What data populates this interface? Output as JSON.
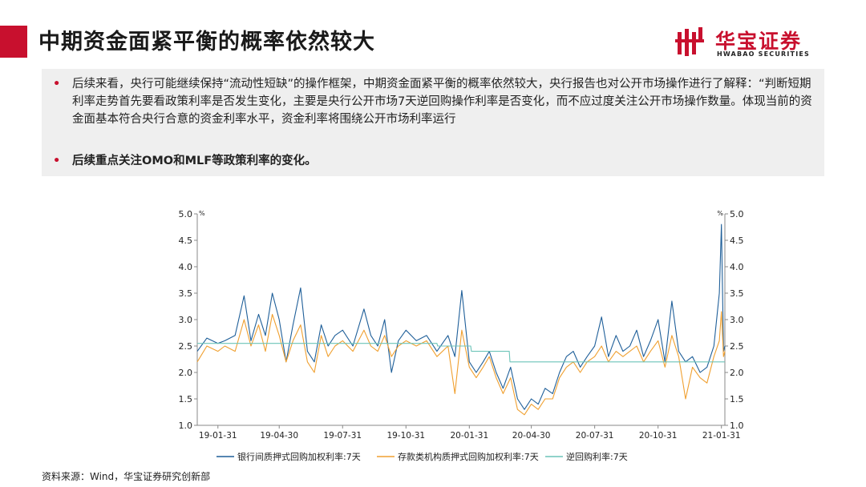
{
  "page": {
    "title": "中期资金面紧平衡的概率依然较大",
    "brand_cn": "华宝证券",
    "brand_en": "HWABAO SECURITIES",
    "accent_color": "#c8102e"
  },
  "bullets": [
    {
      "marker": "•",
      "text": "后续来看，央行可能继续保持“流动性短缺”的操作框架，中期资金面紧平衡的概率依然较大，央行报告也对公开市场操作进行了解释：“判断短期利率走势首先要看政策利率是否发生变化，主要是央行公开市场7天逆回购操作利率是否变化，而不应过度关注公开市场操作数量。体现当前的资金面基本符合央行合意的资金利率水平，资金利率将围绕公开市场利率运行"
    },
    {
      "marker": "•",
      "text": "后续重点关注OMO和MLF等政策利率的变化。"
    }
  ],
  "source": "资料来源：Wind，华宝证券研究创新部",
  "chart_data": {
    "type": "line",
    "y_unit_left": "%",
    "y_unit_right": "%",
    "ylim": [
      1.0,
      5.0
    ],
    "yticks": [
      "1.0",
      "1.5",
      "2.0",
      "2.5",
      "3.0",
      "3.5",
      "4.0",
      "4.5",
      "5.0"
    ],
    "xticks": [
      "19-01-31",
      "19-04-30",
      "19-07-31",
      "19-10-31",
      "20-01-31",
      "20-04-30",
      "20-07-31",
      "20-10-31",
      "21-01-31"
    ],
    "x_range": [
      "2019-01-01",
      "2021-02-05"
    ],
    "grid": false,
    "legend_position": "bottom",
    "series": [
      {
        "name": "银行间质押式回购加权利率:7天",
        "color": "#1f5f99",
        "points": [
          [
            "2019-01-01",
            2.4
          ],
          [
            "2019-01-15",
            2.65
          ],
          [
            "2019-01-31",
            2.55
          ],
          [
            "2019-02-10",
            2.6
          ],
          [
            "2019-02-25",
            2.7
          ],
          [
            "2019-03-10",
            3.45
          ],
          [
            "2019-03-20",
            2.6
          ],
          [
            "2019-03-31",
            3.1
          ],
          [
            "2019-04-10",
            2.7
          ],
          [
            "2019-04-20",
            3.5
          ],
          [
            "2019-04-30",
            3.0
          ],
          [
            "2019-05-10",
            2.2
          ],
          [
            "2019-05-20",
            2.9
          ],
          [
            "2019-05-31",
            3.6
          ],
          [
            "2019-06-10",
            2.4
          ],
          [
            "2019-06-20",
            2.2
          ],
          [
            "2019-06-30",
            2.9
          ],
          [
            "2019-07-10",
            2.5
          ],
          [
            "2019-07-20",
            2.7
          ],
          [
            "2019-07-31",
            2.8
          ],
          [
            "2019-08-15",
            2.5
          ],
          [
            "2019-08-31",
            3.2
          ],
          [
            "2019-09-10",
            2.7
          ],
          [
            "2019-09-20",
            2.5
          ],
          [
            "2019-09-30",
            3.0
          ],
          [
            "2019-10-10",
            2.0
          ],
          [
            "2019-10-20",
            2.6
          ],
          [
            "2019-10-31",
            2.8
          ],
          [
            "2019-11-15",
            2.6
          ],
          [
            "2019-11-30",
            2.7
          ],
          [
            "2019-12-15",
            2.4
          ],
          [
            "2019-12-31",
            2.7
          ],
          [
            "2020-01-10",
            2.3
          ],
          [
            "2020-01-20",
            3.55
          ],
          [
            "2020-01-31",
            2.2
          ],
          [
            "2020-02-10",
            2.0
          ],
          [
            "2020-02-20",
            2.2
          ],
          [
            "2020-02-29",
            2.4
          ],
          [
            "2020-03-10",
            2.0
          ],
          [
            "2020-03-20",
            1.7
          ],
          [
            "2020-03-31",
            2.1
          ],
          [
            "2020-04-10",
            1.5
          ],
          [
            "2020-04-20",
            1.3
          ],
          [
            "2020-04-30",
            1.5
          ],
          [
            "2020-05-10",
            1.4
          ],
          [
            "2020-05-20",
            1.7
          ],
          [
            "2020-05-31",
            1.6
          ],
          [
            "2020-06-10",
            2.0
          ],
          [
            "2020-06-20",
            2.3
          ],
          [
            "2020-06-30",
            2.4
          ],
          [
            "2020-07-10",
            2.1
          ],
          [
            "2020-07-20",
            2.3
          ],
          [
            "2020-07-31",
            2.5
          ],
          [
            "2020-08-10",
            3.05
          ],
          [
            "2020-08-20",
            2.3
          ],
          [
            "2020-08-31",
            2.7
          ],
          [
            "2020-09-10",
            2.4
          ],
          [
            "2020-09-20",
            2.5
          ],
          [
            "2020-09-30",
            2.8
          ],
          [
            "2020-10-10",
            2.3
          ],
          [
            "2020-10-20",
            2.6
          ],
          [
            "2020-10-31",
            3.0
          ],
          [
            "2020-11-10",
            2.2
          ],
          [
            "2020-11-20",
            3.35
          ],
          [
            "2020-11-30",
            2.4
          ],
          [
            "2020-12-10",
            2.2
          ],
          [
            "2020-12-20",
            2.3
          ],
          [
            "2020-12-31",
            2.0
          ],
          [
            "2021-01-10",
            2.1
          ],
          [
            "2021-01-20",
            2.5
          ],
          [
            "2021-01-28",
            3.5
          ],
          [
            "2021-01-31",
            4.8
          ],
          [
            "2021-02-03",
            2.4
          ],
          [
            "2021-02-05",
            2.5
          ]
        ]
      },
      {
        "name": "存款类机构质押式回购加权利率:7天",
        "color": "#f0a030",
        "points": [
          [
            "2019-01-01",
            2.2
          ],
          [
            "2019-01-15",
            2.5
          ],
          [
            "2019-01-31",
            2.4
          ],
          [
            "2019-02-10",
            2.5
          ],
          [
            "2019-02-25",
            2.4
          ],
          [
            "2019-03-10",
            3.0
          ],
          [
            "2019-03-20",
            2.5
          ],
          [
            "2019-03-31",
            2.9
          ],
          [
            "2019-04-10",
            2.4
          ],
          [
            "2019-04-20",
            3.1
          ],
          [
            "2019-04-30",
            2.7
          ],
          [
            "2019-05-10",
            2.2
          ],
          [
            "2019-05-20",
            2.6
          ],
          [
            "2019-05-31",
            2.9
          ],
          [
            "2019-06-10",
            2.2
          ],
          [
            "2019-06-20",
            2.0
          ],
          [
            "2019-06-30",
            2.7
          ],
          [
            "2019-07-10",
            2.3
          ],
          [
            "2019-07-20",
            2.5
          ],
          [
            "2019-07-31",
            2.6
          ],
          [
            "2019-08-15",
            2.4
          ],
          [
            "2019-08-31",
            2.8
          ],
          [
            "2019-09-10",
            2.5
          ],
          [
            "2019-09-20",
            2.4
          ],
          [
            "2019-09-30",
            2.7
          ],
          [
            "2019-10-10",
            2.3
          ],
          [
            "2019-10-20",
            2.5
          ],
          [
            "2019-10-31",
            2.6
          ],
          [
            "2019-11-15",
            2.5
          ],
          [
            "2019-11-30",
            2.6
          ],
          [
            "2019-12-15",
            2.3
          ],
          [
            "2019-12-31",
            2.5
          ],
          [
            "2020-01-10",
            1.6
          ],
          [
            "2020-01-20",
            2.8
          ],
          [
            "2020-01-31",
            2.1
          ],
          [
            "2020-02-10",
            1.9
          ],
          [
            "2020-02-20",
            2.1
          ],
          [
            "2020-02-29",
            2.3
          ],
          [
            "2020-03-10",
            1.9
          ],
          [
            "2020-03-20",
            1.6
          ],
          [
            "2020-03-31",
            1.9
          ],
          [
            "2020-04-10",
            1.3
          ],
          [
            "2020-04-20",
            1.2
          ],
          [
            "2020-04-30",
            1.4
          ],
          [
            "2020-05-10",
            1.3
          ],
          [
            "2020-05-20",
            1.5
          ],
          [
            "2020-05-31",
            1.5
          ],
          [
            "2020-06-10",
            1.9
          ],
          [
            "2020-06-20",
            2.1
          ],
          [
            "2020-06-30",
            2.2
          ],
          [
            "2020-07-10",
            2.0
          ],
          [
            "2020-07-20",
            2.2
          ],
          [
            "2020-07-31",
            2.3
          ],
          [
            "2020-08-10",
            2.5
          ],
          [
            "2020-08-20",
            2.2
          ],
          [
            "2020-08-31",
            2.4
          ],
          [
            "2020-09-10",
            2.3
          ],
          [
            "2020-09-20",
            2.4
          ],
          [
            "2020-09-30",
            2.5
          ],
          [
            "2020-10-10",
            2.2
          ],
          [
            "2020-10-20",
            2.4
          ],
          [
            "2020-10-31",
            2.6
          ],
          [
            "2020-11-10",
            2.1
          ],
          [
            "2020-11-20",
            2.7
          ],
          [
            "2020-11-30",
            2.3
          ],
          [
            "2020-12-10",
            1.5
          ],
          [
            "2020-12-20",
            2.1
          ],
          [
            "2020-12-31",
            1.9
          ],
          [
            "2021-01-10",
            1.8
          ],
          [
            "2021-01-20",
            2.3
          ],
          [
            "2021-01-28",
            2.6
          ],
          [
            "2021-01-31",
            3.15
          ],
          [
            "2021-02-03",
            2.3
          ],
          [
            "2021-02-05",
            2.4
          ]
        ]
      },
      {
        "name": "逆回购利率:7天",
        "color": "#6cc4b8",
        "points": [
          [
            "2019-01-01",
            2.55
          ],
          [
            "2019-12-15",
            2.55
          ],
          [
            "2019-12-16",
            2.5
          ],
          [
            "2020-02-02",
            2.5
          ],
          [
            "2020-02-03",
            2.4
          ],
          [
            "2020-03-29",
            2.4
          ],
          [
            "2020-03-30",
            2.2
          ],
          [
            "2021-02-05",
            2.2
          ]
        ]
      }
    ]
  }
}
